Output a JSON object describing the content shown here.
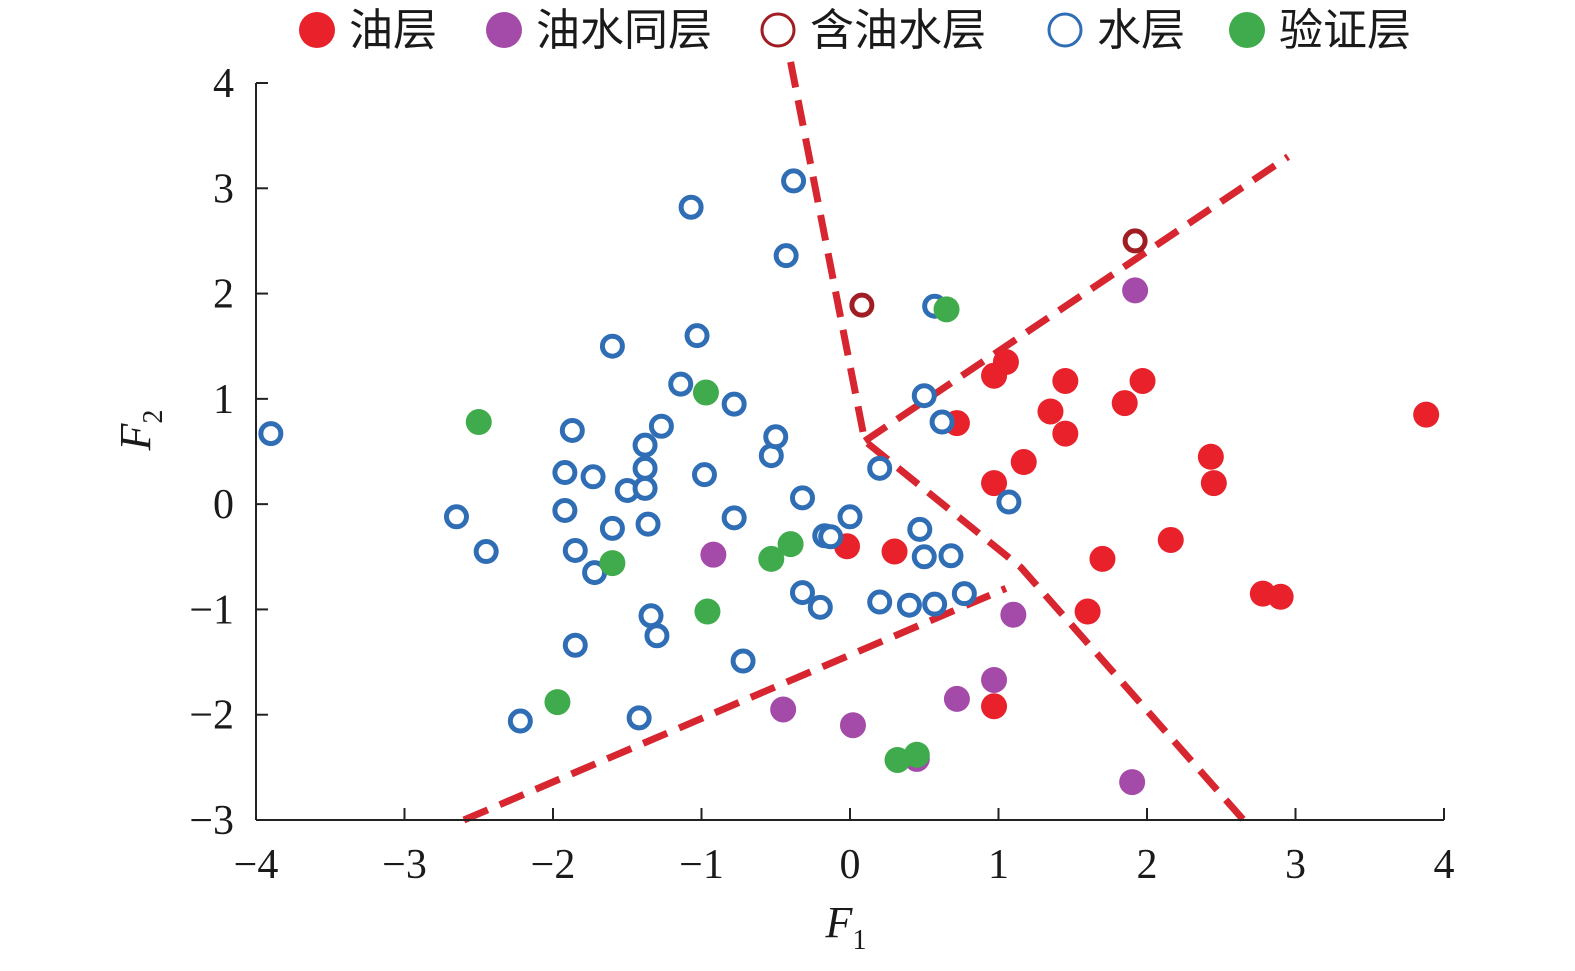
{
  "chart_data": {
    "type": "scatter",
    "title": "",
    "xlabel": "F",
    "xlabel_sub": "1",
    "ylabel": "F",
    "ylabel_sub": "2",
    "xlim": [
      -4,
      4
    ],
    "ylim": [
      -3,
      4
    ],
    "xticks": [
      -4,
      -3,
      -2,
      -1,
      0,
      1,
      2,
      3,
      4
    ],
    "yticks": [
      -3,
      -2,
      -1,
      0,
      1,
      2,
      3,
      4
    ],
    "xtick_labels": [
      "−4",
      "−3",
      "−2",
      "−1",
      "0",
      "1",
      "2",
      "3",
      "4"
    ],
    "ytick_labels": [
      "−3",
      "−2",
      "−1",
      "0",
      "1",
      "2",
      "3",
      "4"
    ],
    "grid": false,
    "legend_position": "top",
    "series": [
      {
        "name": "油层",
        "marker": "filled",
        "color": "#e8212b",
        "points": [
          [
            3.88,
            0.85
          ],
          [
            2.9,
            -0.88
          ],
          [
            2.78,
            -0.85
          ],
          [
            2.45,
            0.2
          ],
          [
            2.43,
            0.45
          ],
          [
            2.16,
            -0.34
          ],
          [
            1.97,
            1.17
          ],
          [
            1.85,
            0.96
          ],
          [
            1.7,
            -0.52
          ],
          [
            1.6,
            -1.02
          ],
          [
            1.45,
            1.17
          ],
          [
            1.45,
            0.67
          ],
          [
            1.35,
            0.88
          ],
          [
            1.17,
            0.4
          ],
          [
            1.05,
            1.35
          ],
          [
            0.97,
            1.22
          ],
          [
            0.97,
            0.2
          ],
          [
            0.97,
            -1.92
          ],
          [
            0.72,
            0.77
          ],
          [
            0.3,
            -0.45
          ],
          [
            -0.02,
            -0.4
          ]
        ]
      },
      {
        "name": "油水同层",
        "marker": "filled",
        "color": "#a44aa9",
        "points": [
          [
            1.92,
            2.03
          ],
          [
            1.9,
            -2.64
          ],
          [
            1.1,
            -1.05
          ],
          [
            0.97,
            -1.67
          ],
          [
            0.72,
            -1.85
          ],
          [
            0.45,
            -2.42
          ],
          [
            0.02,
            -2.1
          ],
          [
            -0.45,
            -1.95
          ],
          [
            -0.92,
            -0.48
          ]
        ]
      },
      {
        "name": "含油水层",
        "marker": "open",
        "color": "#a11d24",
        "points": [
          [
            1.92,
            2.5
          ],
          [
            0.08,
            1.89
          ]
        ]
      },
      {
        "name": "水层",
        "marker": "open",
        "color": "#2f6db5",
        "points": [
          [
            -3.9,
            0.67
          ],
          [
            -2.65,
            -0.12
          ],
          [
            -2.45,
            -0.45
          ],
          [
            -2.22,
            -2.06
          ],
          [
            -1.92,
            0.3
          ],
          [
            -1.92,
            -0.06
          ],
          [
            -1.87,
            0.7
          ],
          [
            -1.85,
            -0.44
          ],
          [
            -1.85,
            -1.34
          ],
          [
            -1.73,
            0.26
          ],
          [
            -1.72,
            -0.65
          ],
          [
            -1.6,
            1.5
          ],
          [
            -1.6,
            -0.23
          ],
          [
            -1.5,
            0.13
          ],
          [
            -1.42,
            -2.03
          ],
          [
            -1.38,
            0.56
          ],
          [
            -1.38,
            0.34
          ],
          [
            -1.38,
            0.15
          ],
          [
            -1.36,
            -0.19
          ],
          [
            -1.34,
            -1.06
          ],
          [
            -1.3,
            -1.25
          ],
          [
            -1.27,
            0.74
          ],
          [
            -1.14,
            1.14
          ],
          [
            -1.07,
            2.82
          ],
          [
            -1.03,
            1.6
          ],
          [
            -0.98,
            0.28
          ],
          [
            -0.78,
            0.95
          ],
          [
            -0.78,
            -0.13
          ],
          [
            -0.72,
            -1.49
          ],
          [
            -0.53,
            0.46
          ],
          [
            -0.5,
            0.64
          ],
          [
            -0.43,
            2.36
          ],
          [
            -0.38,
            3.07
          ],
          [
            -0.32,
            0.06
          ],
          [
            -0.32,
            -0.84
          ],
          [
            -0.2,
            -0.98
          ],
          [
            -0.17,
            -0.3
          ],
          [
            -0.13,
            -0.31
          ],
          [
            0.0,
            -0.12
          ],
          [
            0.2,
            0.34
          ],
          [
            0.2,
            -0.93
          ],
          [
            0.4,
            -0.96
          ],
          [
            0.47,
            -0.24
          ],
          [
            0.5,
            -0.5
          ],
          [
            0.5,
            1.03
          ],
          [
            0.57,
            -0.95
          ],
          [
            0.57,
            1.88
          ],
          [
            0.62,
            0.78
          ],
          [
            0.68,
            -0.49
          ],
          [
            0.77,
            -0.85
          ],
          [
            1.07,
            0.02
          ]
        ]
      },
      {
        "name": "验证层",
        "marker": "filled",
        "color": "#3fab4c",
        "points": [
          [
            -2.5,
            0.78
          ],
          [
            -1.97,
            -1.88
          ],
          [
            -1.6,
            -0.56
          ],
          [
            -0.97,
            1.06
          ],
          [
            -0.96,
            -1.02
          ],
          [
            -0.53,
            -0.52
          ],
          [
            -0.4,
            -0.38
          ],
          [
            0.32,
            -2.43
          ],
          [
            0.45,
            -2.38
          ],
          [
            0.65,
            1.85
          ]
        ]
      }
    ],
    "boundary_lines": [
      {
        "color": "#d7262f",
        "style": "dashed",
        "points": [
          [
            -0.4,
            4.2
          ],
          [
            0.1,
            0.6
          ],
          [
            1.15,
            -0.6
          ],
          [
            2.65,
            -3.0
          ]
        ]
      },
      {
        "color": "#d7262f",
        "style": "dashed",
        "points": [
          [
            0.1,
            0.6
          ],
          [
            2.95,
            3.3
          ]
        ]
      },
      {
        "color": "#d7262f",
        "style": "dashed",
        "points": [
          [
            -2.6,
            -3.0
          ],
          [
            1.05,
            -0.8
          ]
        ]
      }
    ]
  }
}
